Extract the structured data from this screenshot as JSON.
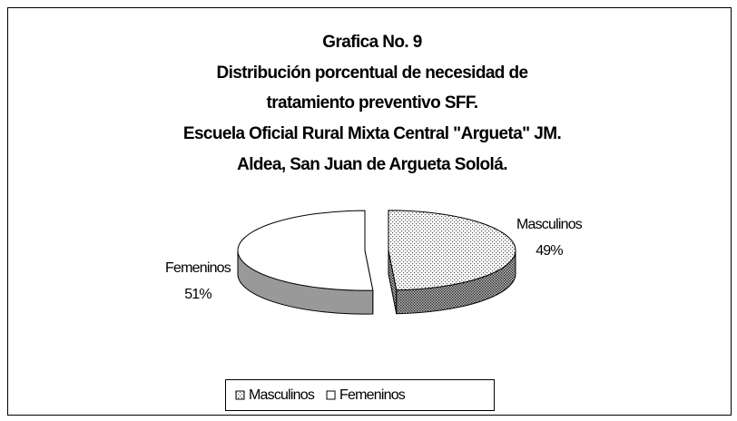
{
  "chart_data": {
    "type": "pie3d",
    "title": [
      "Grafica No. 9",
      "Distribución porcentual de necesidad de",
      "tratamiento preventivo SFF.",
      "Escuela Oficial Rural Mixta Central \"Argueta\" JM.",
      "Aldea, San Juan de Argueta Sololá."
    ],
    "categories": [
      "Masculinos",
      "Femeninos"
    ],
    "values": [
      49,
      51
    ],
    "value_labels": [
      "49%",
      "51%"
    ],
    "colors": [
      "#c8c8c8",
      "#ffffff"
    ],
    "fill_patterns": [
      "dotted",
      "solid"
    ],
    "exploded": true,
    "legend": "bottom"
  }
}
